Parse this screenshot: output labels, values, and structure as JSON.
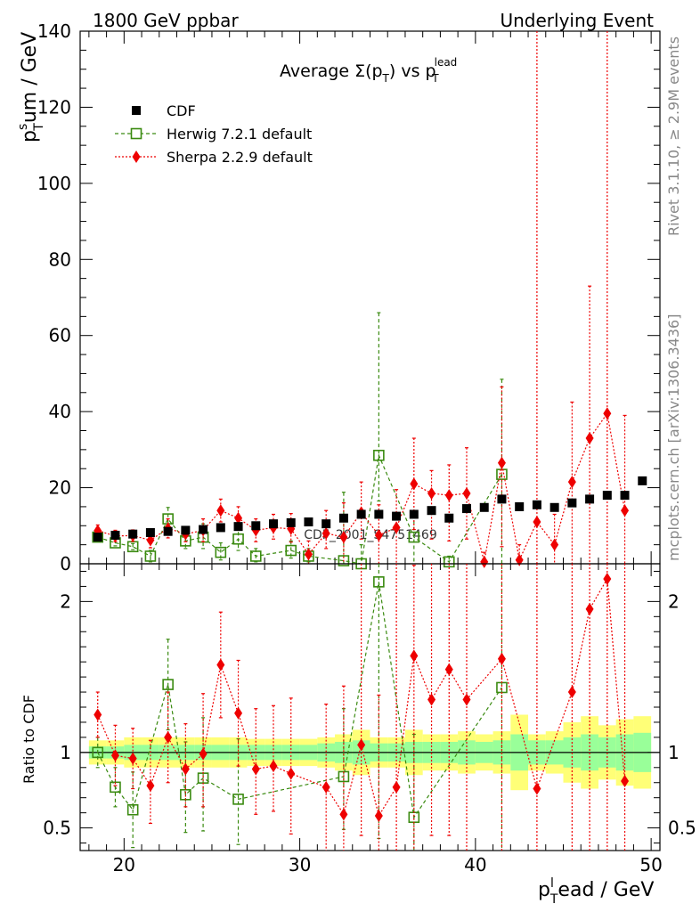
{
  "header": {
    "left": "1800 GeV ppbar",
    "right": "Underlying Event",
    "title_main": "Average ",
    "title_sigma": "Σ(p",
    "title_sigma_sub": "T",
    "title_paren": ")",
    "title_vs": " vs p",
    "title_lead_sup": "lead",
    "title_lead_sub": "T"
  },
  "side_labels": {
    "rivet": "Rivet 3.1.10, ≥ 2.9M events",
    "mcplots": "mcplots.cern.ch [arXiv:1306.3436]"
  },
  "watermark": "CDF_2001_S4751469",
  "colors": {
    "cdf": "#000000",
    "herwig": "#3a8a10",
    "sherpa": "#ee0000",
    "band_inner": "#99ff99",
    "band_outer": "#ffff77"
  },
  "chart_data": [
    {
      "type": "scatter",
      "name": "main",
      "ylabel": "p",
      "ylabel_sup": "s",
      "ylabel_sub": "T",
      "ylabel_rest": "um / GeV",
      "ylim": [
        0,
        140
      ],
      "yticks": [
        0,
        20,
        40,
        60,
        80,
        100,
        120,
        140
      ],
      "xlim": [
        17.5,
        50.5
      ],
      "legend": [
        "CDF",
        "Herwig 7.2.1 default",
        "Sherpa 2.2.9 default"
      ],
      "legend_position": "top-left",
      "series": [
        {
          "name": "CDF",
          "x": [
            18.5,
            19.5,
            20.5,
            21.5,
            22.5,
            23.5,
            24.5,
            25.5,
            26.5,
            27.5,
            28.5,
            29.5,
            30.5,
            31.5,
            32.5,
            33.5,
            34.5,
            35.5,
            36.5,
            37.5,
            38.5,
            39.5,
            40.5,
            41.5,
            42.5,
            43.5,
            44.5,
            45.5,
            46.5,
            47.5,
            48.5,
            49.5
          ],
          "y": [
            7.0,
            7.5,
            7.8,
            8.2,
            8.5,
            8.8,
            9.0,
            9.5,
            9.8,
            10.0,
            10.5,
            10.8,
            11.0,
            10.5,
            12.0,
            13.0,
            13.0,
            12.5,
            13.0,
            14.0,
            12.0,
            14.5,
            14.8,
            17.0,
            15.0,
            15.5,
            14.8,
            16.0,
            17.0,
            18.0,
            18.0,
            21.8
          ]
        },
        {
          "name": "Herwig 7.2.1 default",
          "x": [
            18.5,
            19.5,
            20.5,
            21.5,
            22.5,
            23.5,
            24.5,
            25.5,
            26.5,
            27.5,
            29.5,
            30.5,
            32.5,
            33.5,
            34.5,
            36.5,
            38.5,
            41.5
          ],
          "y": [
            7.0,
            5.5,
            4.5,
            2.0,
            11.8,
            6.0,
            7.0,
            3.0,
            6.5,
            2.0,
            3.5,
            2.0,
            0.8,
            0.0,
            28.5,
            7.0,
            0.5,
            23.5
          ],
          "err_lo": [
            0.8,
            0.8,
            0.8,
            1.5,
            2.5,
            2.0,
            3.0,
            2.0,
            3.0,
            1.5,
            2.0,
            1.5,
            0.8,
            0.0,
            12.0,
            7.0,
            0.5,
            23.5
          ],
          "err_hi": [
            0.8,
            0.8,
            0.8,
            1.5,
            3.0,
            2.5,
            3.5,
            2.5,
            3.5,
            2.0,
            2.5,
            2.0,
            18.0,
            5.0,
            37.5,
            6.0,
            1.5,
            25.0
          ]
        },
        {
          "name": "Sherpa 2.2.9 default",
          "x": [
            18.5,
            19.5,
            20.5,
            21.5,
            22.5,
            23.5,
            24.5,
            25.5,
            26.5,
            27.5,
            28.5,
            29.5,
            30.5,
            31.5,
            32.5,
            33.5,
            34.5,
            35.5,
            36.5,
            37.5,
            38.5,
            39.5,
            40.5,
            41.5,
            42.5,
            43.5,
            44.5,
            45.5,
            46.5,
            47.5,
            48.5
          ],
          "y": [
            8.7,
            7.3,
            7.4,
            6.2,
            9.3,
            7.8,
            8.8,
            14.0,
            12.0,
            8.8,
            9.5,
            9.2,
            2.5,
            8.0,
            7.0,
            13.5,
            7.5,
            9.5,
            21.0,
            18.5,
            18.0,
            18.5,
            0.5,
            26.5,
            1.0,
            11.0,
            5.0,
            21.5,
            33.0,
            39.5,
            14.0
          ],
          "err_lo": [
            1.5,
            1.5,
            1.5,
            2.0,
            2.5,
            2.0,
            3.0,
            3.0,
            3.0,
            3.0,
            3.0,
            3.5,
            2.5,
            4.0,
            7.0,
            7.0,
            7.5,
            9.5,
            12.0,
            12.0,
            12.0,
            12.0,
            0.5,
            22.0,
            1.0,
            11.0,
            5.0,
            21.5,
            33.0,
            39.5,
            14.0
          ],
          "err_hi": [
            1.5,
            1.5,
            1.5,
            2.0,
            2.5,
            2.0,
            3.0,
            3.0,
            3.0,
            3.0,
            3.5,
            4.0,
            3.5,
            6.0,
            9.0,
            8.0,
            8.0,
            10.0,
            12.0,
            6.0,
            8.0,
            12.0,
            2.5,
            20.0,
            4.0,
            140.0,
            8.0,
            21.0,
            40.0,
            140.0,
            25.0
          ]
        }
      ]
    },
    {
      "type": "scatter",
      "name": "ratio",
      "ylabel": "Ratio to CDF",
      "xlabel": "p",
      "xlabel_sup": "l",
      "xlabel_sub": "T",
      "xlabel_rest": "ead / GeV",
      "ylim": [
        0.35,
        2.25
      ],
      "yticks": [
        0.5,
        1,
        2
      ],
      "xticks": [
        20,
        30,
        40,
        50
      ],
      "xlim": [
        17.5,
        50.5
      ],
      "band": {
        "x": [
          18.5,
          19.5,
          20.5,
          21.5,
          22.5,
          23.5,
          24.5,
          25.5,
          26.5,
          27.5,
          28.5,
          29.5,
          30.5,
          31.5,
          32.5,
          33.5,
          34.5,
          35.5,
          36.5,
          37.5,
          38.5,
          39.5,
          40.5,
          41.5,
          42.5,
          43.5,
          44.5,
          45.5,
          46.5,
          47.5,
          48.5,
          49.5
        ],
        "inner": [
          0.04,
          0.04,
          0.05,
          0.05,
          0.05,
          0.05,
          0.05,
          0.05,
          0.05,
          0.05,
          0.05,
          0.05,
          0.05,
          0.06,
          0.07,
          0.08,
          0.06,
          0.06,
          0.07,
          0.07,
          0.07,
          0.08,
          0.07,
          0.08,
          0.12,
          0.08,
          0.08,
          0.1,
          0.12,
          0.1,
          0.12,
          0.13
        ],
        "outer": [
          0.08,
          0.08,
          0.1,
          0.1,
          0.1,
          0.1,
          0.1,
          0.1,
          0.1,
          0.09,
          0.09,
          0.09,
          0.09,
          0.1,
          0.12,
          0.15,
          0.1,
          0.1,
          0.15,
          0.12,
          0.12,
          0.14,
          0.12,
          0.14,
          0.25,
          0.12,
          0.14,
          0.2,
          0.24,
          0.18,
          0.22,
          0.24
        ]
      },
      "series": [
        {
          "name": "Herwig 7.2.1 default",
          "x": [
            18.5,
            19.5,
            20.5,
            22.5,
            23.5,
            24.5,
            26.5,
            32.5,
            34.5,
            36.5,
            41.5
          ],
          "y": [
            1.0,
            0.77,
            0.62,
            1.45,
            0.72,
            0.83,
            0.69,
            0.84,
            2.13,
            0.57,
            1.43
          ],
          "err_lo": [
            0.1,
            0.13,
            0.25,
            0.3,
            0.25,
            0.35,
            0.3,
            0.35,
            1.7,
            0.25,
            1.1
          ],
          "err_hi": [
            0.1,
            0.13,
            0.25,
            0.3,
            0.35,
            0.4,
            0.4,
            0.45,
            1.0,
            0.55,
            1.0
          ]
        },
        {
          "name": "Sherpa 2.2.9 default",
          "x": [
            18.5,
            19.5,
            20.5,
            21.5,
            22.5,
            23.5,
            24.5,
            25.5,
            26.5,
            27.5,
            28.5,
            29.5,
            31.5,
            32.5,
            33.5,
            34.5,
            35.5,
            36.5,
            37.5,
            38.5,
            39.5,
            41.5,
            43.5,
            45.5,
            46.5,
            47.5,
            48.5
          ],
          "y": [
            1.25,
            0.98,
            0.96,
            0.78,
            1.1,
            0.89,
            0.99,
            1.58,
            1.26,
            0.89,
            0.91,
            0.86,
            0.77,
            0.59,
            1.05,
            0.58,
            0.77,
            1.64,
            1.35,
            1.55,
            1.35,
            1.62,
            0.76,
            1.4,
            1.95,
            2.15,
            0.81
          ],
          "err_lo": [
            0.15,
            0.2,
            0.2,
            0.25,
            0.3,
            0.25,
            0.35,
            0.35,
            0.35,
            0.3,
            0.3,
            0.4,
            0.45,
            0.25,
            0.6,
            0.23,
            0.5,
            1.3,
            0.9,
            1.1,
            1.0,
            1.3,
            0.45,
            1.1,
            1.6,
            1.8,
            0.5
          ],
          "err_hi": [
            0.15,
            0.2,
            0.2,
            0.3,
            0.3,
            0.3,
            0.4,
            0.35,
            0.35,
            0.4,
            0.4,
            0.5,
            0.55,
            0.85,
            1.2,
            0.8,
            1.5,
            0.6,
            0.9,
            0.7,
            0.9,
            0.7,
            1.5,
            0.85,
            0.5,
            0.1,
            1.45
          ]
        }
      ]
    }
  ]
}
